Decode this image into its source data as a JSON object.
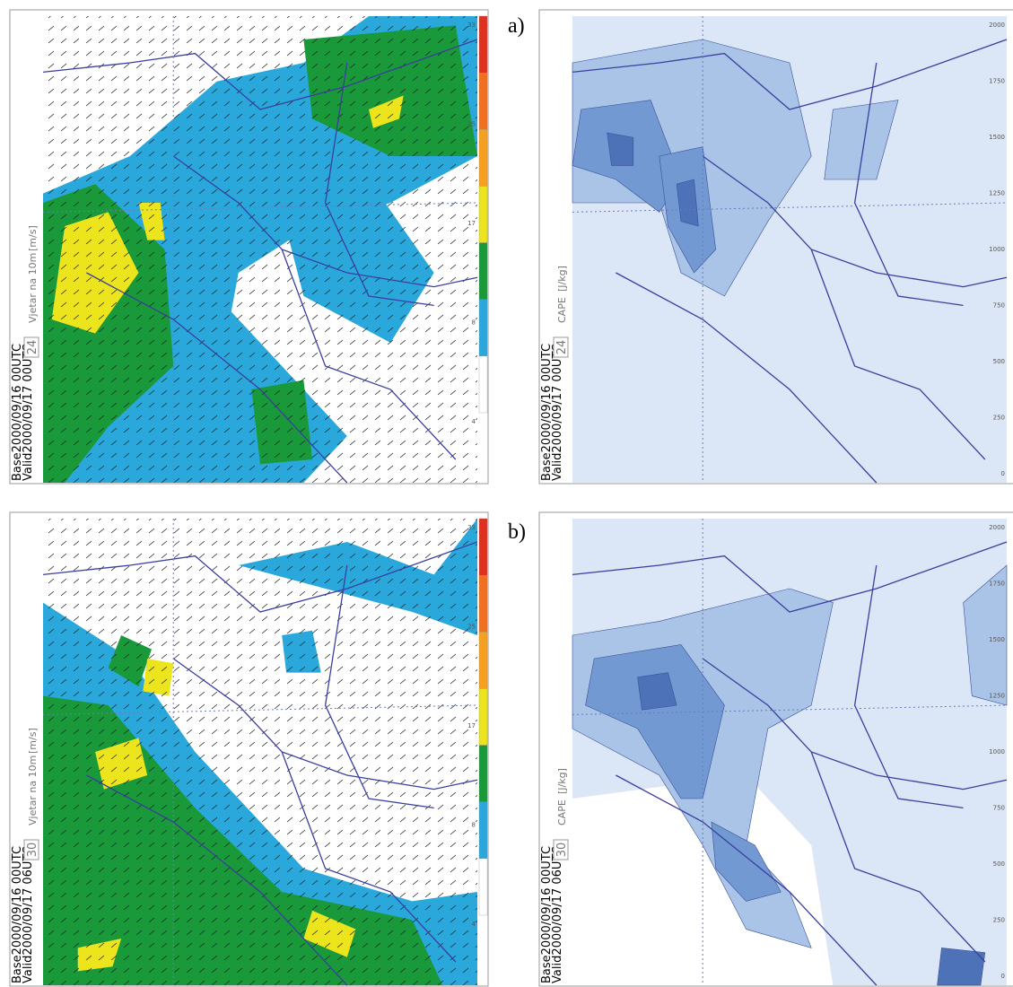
{
  "row_labels": [
    "a)",
    "b)"
  ],
  "panels": [
    {
      "type": "wind",
      "title": "Vjetar na 10m",
      "unit": "[m/s]",
      "hour": "24",
      "base": "Base2000/09/16 00UTC",
      "valid": "Valid2000/09/17 00UTC",
      "scale": [
        "33",
        "25",
        "17",
        "8",
        "4"
      ]
    },
    {
      "type": "cape",
      "title": "CAPE",
      "unit": "[J/kg]",
      "hour": "24",
      "base": "Base2000/09/16 00UTC",
      "valid": "Valid2000/09/17 00UTC",
      "scale": [
        "2000",
        "1750",
        "1500",
        "1250",
        "1000",
        "750",
        "500",
        "250",
        "0"
      ]
    },
    {
      "type": "wind",
      "title": "Vjetar na 10m",
      "unit": "[m/s]",
      "hour": "30",
      "base": "Base2000/09/16 00UTC",
      "valid": "Valid2000/09/17 06UTC",
      "scale": [
        "33",
        "25",
        "17",
        "8",
        "4"
      ]
    },
    {
      "type": "cape",
      "title": "CAPE",
      "unit": "[J/kg]",
      "hour": "30",
      "base": "Base2000/09/16 00UTC",
      "valid": "Valid2000/09/17 06UTC",
      "scale": [
        "2000",
        "1750",
        "1500",
        "1250",
        "1000",
        "750",
        "500",
        "250",
        "0"
      ]
    }
  ]
}
